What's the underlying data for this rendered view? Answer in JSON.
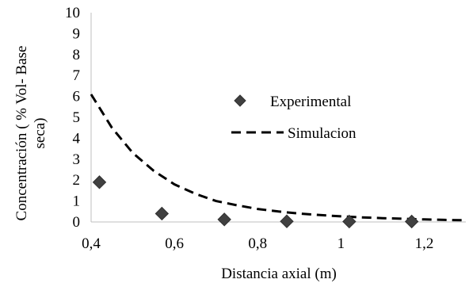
{
  "chart_data": {
    "type": "scatter",
    "xlabel": "Distancia axial (m)",
    "ylabel_line1": "Concentración ( % Vol- Base",
    "ylabel_line2": "seca)",
    "xlim": [
      0.4,
      1.3
    ],
    "ylim": [
      0,
      10
    ],
    "x_ticks": [
      "0,4",
      "0,6",
      "0,8",
      "1",
      "1,2"
    ],
    "x_tick_values": [
      0.4,
      0.6,
      0.8,
      1.0,
      1.2
    ],
    "y_ticks": [
      "0",
      "1",
      "2",
      "3",
      "4",
      "5",
      "6",
      "7",
      "8",
      "9",
      "10"
    ],
    "y_tick_values": [
      0,
      1,
      2,
      3,
      4,
      5,
      6,
      7,
      8,
      9,
      10
    ],
    "grid": false,
    "legend_position": "right",
    "series": [
      {
        "name": "Experimental",
        "kind": "scatter",
        "marker": "diamond",
        "color": "#404040",
        "x": [
          0.42,
          0.57,
          0.72,
          0.87,
          1.02,
          1.17
        ],
        "y": [
          1.9,
          0.4,
          0.12,
          0.03,
          0.02,
          0.02
        ]
      },
      {
        "name": "Simulacion",
        "kind": "line",
        "style": "dashed",
        "color": "#000000",
        "x": [
          0.4,
          0.45,
          0.5,
          0.55,
          0.6,
          0.65,
          0.7,
          0.75,
          0.8,
          0.85,
          0.9,
          0.95,
          1.0,
          1.05,
          1.1,
          1.15,
          1.2,
          1.25,
          1.3
        ],
        "y": [
          6.1,
          4.5,
          3.3,
          2.45,
          1.8,
          1.35,
          1.0,
          0.8,
          0.62,
          0.5,
          0.4,
          0.33,
          0.27,
          0.22,
          0.18,
          0.15,
          0.12,
          0.1,
          0.08
        ]
      }
    ]
  }
}
